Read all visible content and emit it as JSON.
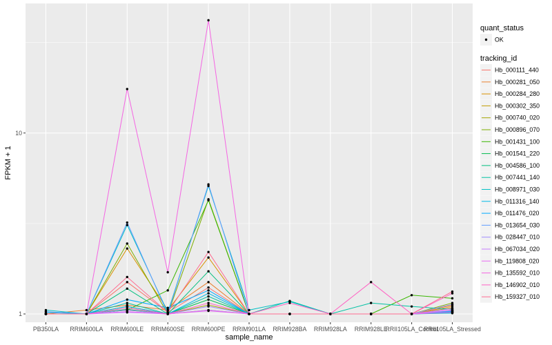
{
  "chart_data": {
    "type": "line",
    "title": "",
    "xlabel": "sample_name",
    "ylabel": "FPKM + 1",
    "y_scale": "log10",
    "ylim": [
      0.9,
      52
    ],
    "y_ticks": [
      1,
      10
    ],
    "y_tick_labels": [
      "1",
      "10"
    ],
    "grid": true,
    "background": "#EBEBEB",
    "legend_position": "right",
    "categories": [
      "PB350LA",
      "RRIM600LA",
      "RRIM600LE",
      "RRIM600SE",
      "RRIM600PE",
      "RRIM901LA",
      "RRIM928BA",
      "RRIM928LA",
      "RRIM928LE",
      "RRII105LA_Control",
      "RRII105LA_Stressed"
    ],
    "quant_status": {
      "title": "quant_status",
      "entries": [
        "OK"
      ]
    },
    "tracking_legend_title": "tracking_id",
    "series": [
      {
        "name": "Hb_000111_440",
        "color": "#F8766D",
        "values": [
          1.0,
          1.0,
          1.5,
          1.02,
          1.4,
          1.0,
          1.0,
          1.0,
          1.0,
          1.0,
          1.05
        ]
      },
      {
        "name": "Hb_000281_050",
        "color": "#EA8331",
        "values": [
          1.0,
          1.05,
          1.12,
          1.05,
          1.5,
          1.0,
          1.0,
          1.0,
          1.0,
          1.0,
          1.1
        ]
      },
      {
        "name": "Hb_000284_280",
        "color": "#D89000",
        "values": [
          1.0,
          1.0,
          2.3,
          1.05,
          2.05,
          1.0,
          1.0,
          1.0,
          1.0,
          1.0,
          1.12
        ]
      },
      {
        "name": "Hb_000302_350",
        "color": "#C09B00",
        "values": [
          1.0,
          1.0,
          1.05,
          1.0,
          1.05,
          1.0,
          1.0,
          1.0,
          1.0,
          1.0,
          1.02
        ]
      },
      {
        "name": "Hb_000740_020",
        "color": "#A3A500",
        "values": [
          1.0,
          1.0,
          1.1,
          1.0,
          1.12,
          1.0,
          1.0,
          1.0,
          1.0,
          1.0,
          1.08
        ]
      },
      {
        "name": "Hb_000896_070",
        "color": "#7CAE00",
        "values": [
          1.0,
          1.0,
          2.45,
          1.0,
          4.3,
          1.0,
          1.0,
          1.0,
          1.0,
          1.0,
          1.15
        ]
      },
      {
        "name": "Hb_001431_100",
        "color": "#39B600",
        "values": [
          1.0,
          1.0,
          1.05,
          1.35,
          4.25,
          1.0,
          1.0,
          1.0,
          1.0,
          1.27,
          1.22
        ]
      },
      {
        "name": "Hb_001541_220",
        "color": "#00BB4E",
        "values": [
          1.0,
          1.0,
          1.06,
          1.0,
          1.2,
          1.0,
          1.0,
          1.0,
          1.0,
          1.0,
          1.03
        ]
      },
      {
        "name": "Hb_004586_100",
        "color": "#00BF7D",
        "values": [
          1.0,
          1.0,
          1.38,
          1.0,
          1.72,
          1.0,
          1.0,
          1.0,
          1.0,
          1.0,
          1.04
        ]
      },
      {
        "name": "Hb_007441_140",
        "color": "#00C1A3",
        "values": [
          1.0,
          1.0,
          1.15,
          1.0,
          1.25,
          1.0,
          1.18,
          1.0,
          1.15,
          1.1,
          1.06
        ]
      },
      {
        "name": "Hb_008971_030",
        "color": "#00BFC4",
        "values": [
          1.05,
          1.0,
          3.1,
          1.02,
          5.1,
          1.05,
          1.17,
          1.0,
          1.0,
          1.0,
          1.01
        ]
      },
      {
        "name": "Hb_011316_140",
        "color": "#00B8E7",
        "values": [
          1.02,
          1.0,
          1.1,
          1.0,
          1.3,
          1.0,
          1.0,
          1.0,
          1.0,
          1.0,
          1.02
        ]
      },
      {
        "name": "Hb_011476_020",
        "color": "#00A9FF",
        "values": [
          1.0,
          1.0,
          1.2,
          1.08,
          1.35,
          1.0,
          1.0,
          1.0,
          1.0,
          1.0,
          1.03
        ]
      },
      {
        "name": "Hb_013654_030",
        "color": "#619CFF",
        "values": [
          1.03,
          1.0,
          3.2,
          1.0,
          5.2,
          1.0,
          1.0,
          1.0,
          1.0,
          1.0,
          1.04
        ]
      },
      {
        "name": "Hb_028447_010",
        "color": "#9F8CFF",
        "values": [
          1.0,
          1.0,
          1.05,
          1.0,
          1.1,
          1.0,
          1.0,
          1.0,
          1.0,
          1.0,
          1.13
        ]
      },
      {
        "name": "Hb_067034_020",
        "color": "#C77CFF",
        "values": [
          1.0,
          1.0,
          1.02,
          1.0,
          1.05,
          1.0,
          1.0,
          1.0,
          1.0,
          1.0,
          1.07
        ]
      },
      {
        "name": "Hb_119808_020",
        "color": "#E76BF3",
        "values": [
          1.0,
          1.0,
          1.03,
          1.0,
          1.04,
          1.0,
          1.0,
          1.0,
          1.0,
          1.0,
          1.05
        ]
      },
      {
        "name": "Hb_135592_010",
        "color": "#F564E3",
        "values": [
          1.0,
          1.0,
          17.5,
          1.7,
          42.0,
          1.0,
          1.0,
          1.0,
          1.0,
          1.0,
          1.02
        ]
      },
      {
        "name": "Hb_146902_010",
        "color": "#FF61C3",
        "values": [
          1.0,
          1.0,
          1.08,
          1.0,
          1.15,
          1.0,
          1.15,
          1.0,
          1.5,
          1.0,
          1.3
        ]
      },
      {
        "name": "Hb_159327_010",
        "color": "#FF6C91",
        "values": [
          1.0,
          1.0,
          1.6,
          1.02,
          2.2,
          1.0,
          1.0,
          1.0,
          1.0,
          1.0,
          1.33
        ]
      }
    ]
  }
}
